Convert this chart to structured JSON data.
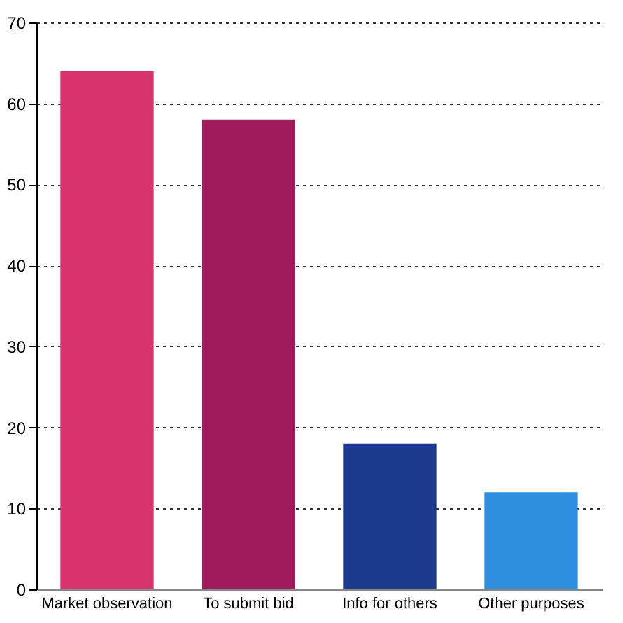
{
  "chart_data": {
    "type": "bar",
    "categories": [
      "Market observation",
      "To submit bid",
      "Info for others",
      "Other purposes"
    ],
    "values": [
      64,
      58,
      18,
      12
    ],
    "colors": [
      "#d8336f",
      "#9e1c5c",
      "#1b3a8e",
      "#2e8fe0"
    ],
    "ylim": [
      0,
      70
    ],
    "yticks": [
      0,
      10,
      20,
      30,
      40,
      50,
      60,
      70
    ],
    "grid": "y"
  }
}
